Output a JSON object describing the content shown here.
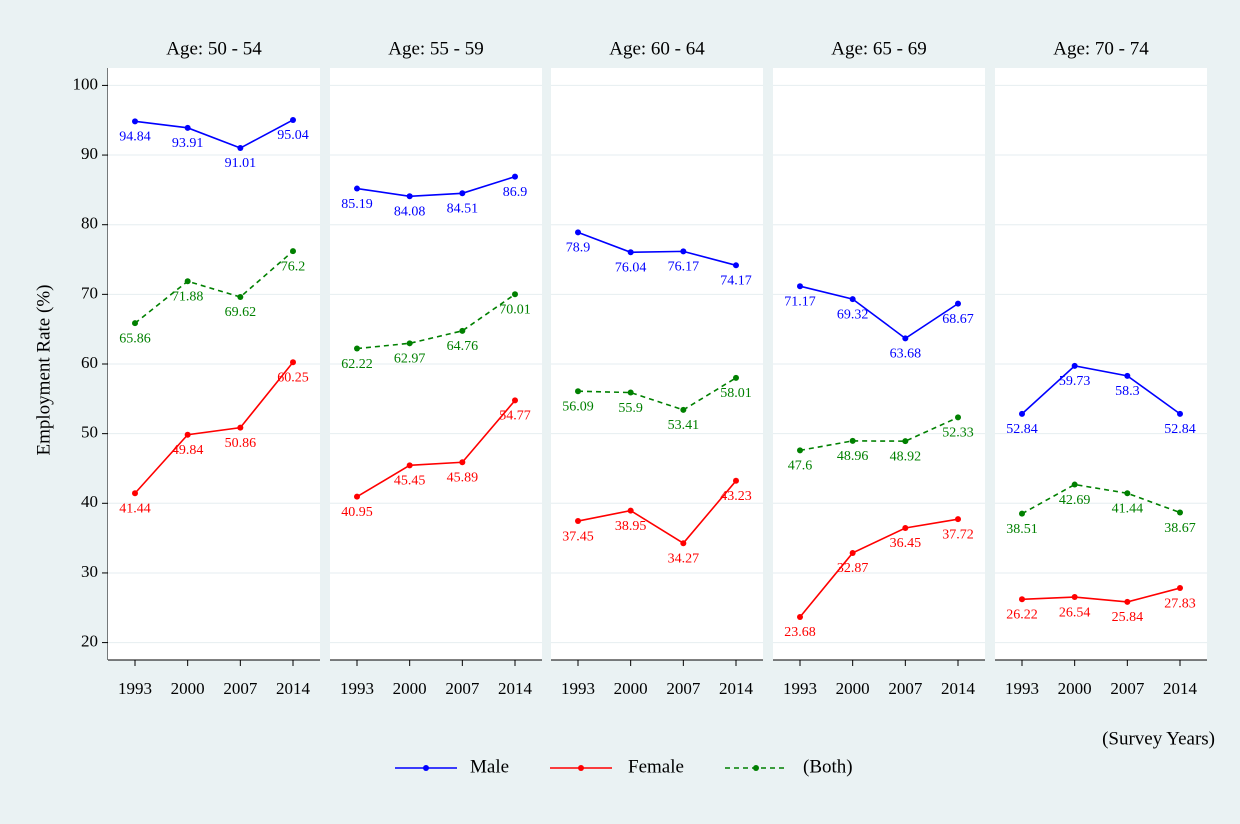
{
  "chart_data": {
    "type": "line",
    "y_label": "Employment Rate (%)",
    "x_label": "(Survey Years)",
    "categories": [
      "1993",
      "2000",
      "2007",
      "2014"
    ],
    "ylim": [
      17.5,
      102.5
    ],
    "yticks": [
      20,
      30,
      40,
      50,
      60,
      70,
      80,
      90,
      100
    ],
    "grid": true,
    "legend": "bottom",
    "series": [
      {
        "name": "Male",
        "color": "#0000ff",
        "style": "solid"
      },
      {
        "name": "Female",
        "color": "#ff0000",
        "style": "solid"
      },
      {
        "name": "(Both)",
        "color": "#008000",
        "style": "dashed"
      }
    ],
    "panels": [
      {
        "title": "Age: 50 - 54",
        "values": [
          [
            94.84,
            93.91,
            91.01,
            95.04
          ],
          [
            41.44,
            49.84,
            50.86,
            60.25
          ],
          [
            65.86,
            71.88,
            69.62,
            76.2
          ]
        ]
      },
      {
        "title": "Age: 55 - 59",
        "values": [
          [
            85.19,
            84.08,
            84.51,
            86.9
          ],
          [
            40.95,
            45.45,
            45.89,
            54.77
          ],
          [
            62.22,
            62.97,
            64.76,
            70.01
          ]
        ]
      },
      {
        "title": "Age: 60 - 64",
        "values": [
          [
            78.9,
            76.04,
            76.17,
            74.17
          ],
          [
            37.45,
            38.95,
            34.27,
            43.23
          ],
          [
            56.09,
            55.9,
            53.41,
            58.01
          ]
        ]
      },
      {
        "title": "Age: 65 - 69",
        "values": [
          [
            71.17,
            69.32,
            63.68,
            68.67
          ],
          [
            23.68,
            32.87,
            36.45,
            37.72
          ],
          [
            47.6,
            48.96,
            48.92,
            52.33
          ]
        ]
      },
      {
        "title": "Age: 70 - 74",
        "values": [
          [
            52.84,
            59.73,
            58.3,
            52.84
          ],
          [
            26.22,
            26.54,
            25.84,
            27.83
          ],
          [
            38.51,
            42.69,
            41.44,
            38.67
          ]
        ]
      }
    ]
  }
}
